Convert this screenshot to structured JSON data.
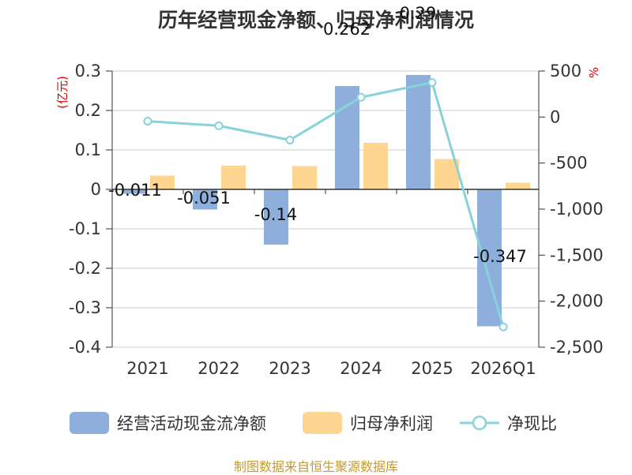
{
  "chart_data": {
    "type": "bar+line",
    "title": "历年经营现金净额、归母净利润情况",
    "categories": [
      "2021",
      "2022",
      "2023",
      "2024",
      "2025",
      "2026Q1"
    ],
    "series": [
      {
        "name": "经营活动现金流净额",
        "axis": "left",
        "type": "bar",
        "color": "#8eaedb",
        "values": [
          -0.011,
          -0.051,
          -0.14,
          0.262,
          0.29,
          -0.347
        ],
        "labels": [
          "-0.011",
          "-0.051",
          "-0.14",
          "0.262",
          "0.29",
          "-0.347"
        ]
      },
      {
        "name": "归母净利润",
        "axis": "left",
        "type": "bar",
        "color": "#ffd592",
        "values": [
          0.035,
          0.06,
          0.059,
          0.118,
          0.077,
          0.017
        ]
      },
      {
        "name": "净现比",
        "axis": "right",
        "type": "line",
        "color": "#88d3d8",
        "values": [
          -45,
          -95,
          -250,
          215,
          375,
          -2280
        ]
      }
    ],
    "yleft": {
      "unit": "(亿元)",
      "min": -0.4,
      "max": 0.3,
      "ticks": [
        0.3,
        0.2,
        0.1,
        0,
        -0.1,
        -0.2,
        -0.3,
        -0.4
      ],
      "tick_labels": [
        "0.3",
        "0.2",
        "0.1",
        "0",
        "-0.1",
        "-0.2",
        "-0.3",
        "-0.4"
      ]
    },
    "yright": {
      "unit": "%",
      "min": -2500,
      "max": 500,
      "ticks": [
        500,
        0,
        -500,
        -1000,
        -1500,
        -2000,
        -2500
      ],
      "tick_labels": [
        "500",
        "0",
        "-500",
        "-1,000",
        "-1,500",
        "-2,000",
        "-2,500"
      ]
    },
    "legend_position": "bottom"
  },
  "source": "制图数据来自恒生聚源数据库"
}
